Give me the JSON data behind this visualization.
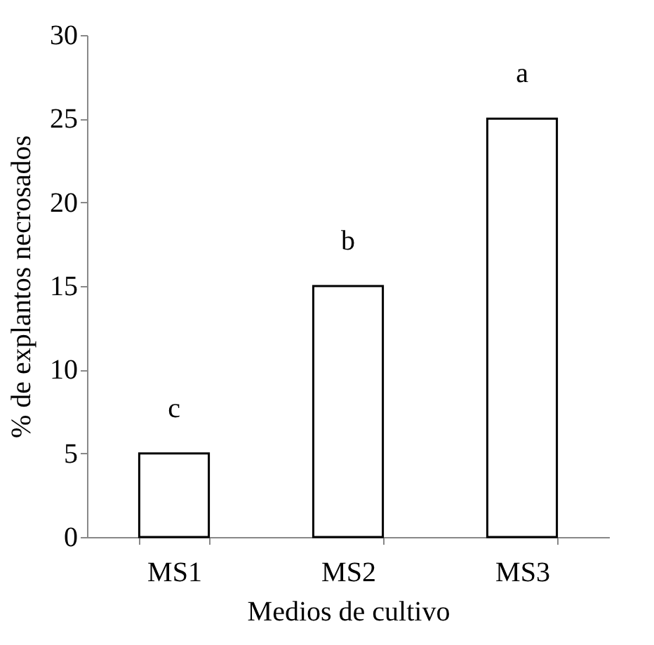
{
  "chart_data": {
    "type": "bar",
    "xlabel": "Medios de cultivo",
    "ylabel": "% de explantos necrosados",
    "categories": [
      "MS1",
      "MS2",
      "MS3"
    ],
    "series": [
      {
        "color": "#ffffff",
        "values": [
          5,
          15,
          25
        ]
      }
    ],
    "ylim": [
      0,
      30
    ],
    "yticks": [
      0,
      5,
      10,
      15,
      20,
      25,
      30
    ],
    "annotations": [
      "c",
      "b",
      "a"
    ]
  }
}
